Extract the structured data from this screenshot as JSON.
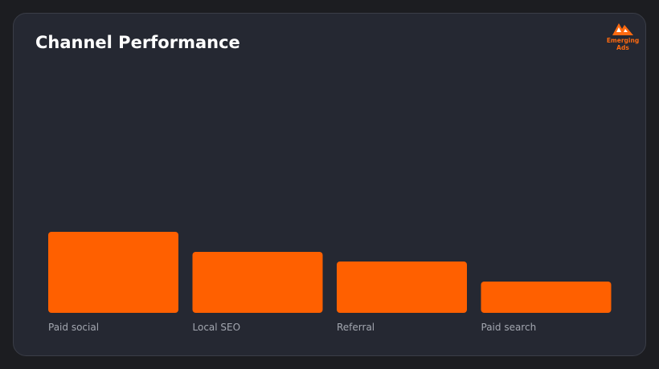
{
  "chart_data": {
    "type": "bar",
    "title": "Channel Performance",
    "categories": [
      "Paid social",
      "Local SEO",
      "Referral",
      "Paid search"
    ],
    "values": [
      101,
      76,
      64,
      39
    ],
    "color": "#ff6000"
  },
  "brand": {
    "lines": [
      "Emerging",
      "Ads"
    ]
  }
}
